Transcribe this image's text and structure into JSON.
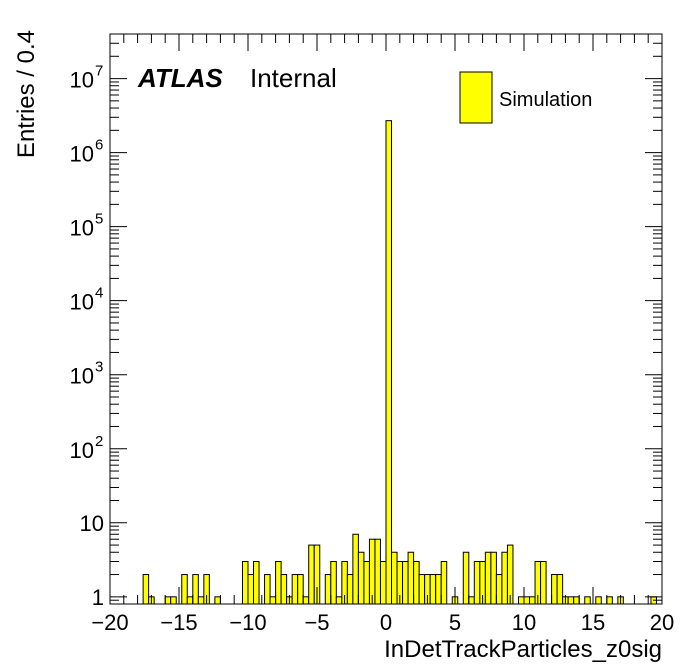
{
  "chart_data": {
    "type": "bar",
    "style": "histogram",
    "xlabel": "InDetTrackParticles_z0sig",
    "ylabel": "Entries / 0.4",
    "xlim": [
      -20,
      20
    ],
    "ylog": true,
    "ylim": [
      0.8,
      40000000
    ],
    "bin_width": 0.4,
    "x_ticks": [
      "−20",
      "−15",
      "−10",
      "−5",
      "0",
      "5",
      "10",
      "15",
      "20"
    ],
    "x_tick_values": [
      -20,
      -15,
      -10,
      -5,
      0,
      5,
      10,
      15,
      20
    ],
    "y_ticks": [
      {
        "value": 1,
        "base": "1",
        "exp": ""
      },
      {
        "value": 10,
        "base": "10",
        "exp": ""
      },
      {
        "value": 100,
        "base": "10",
        "exp": "2"
      },
      {
        "value": 1000,
        "base": "10",
        "exp": "3"
      },
      {
        "value": 10000,
        "base": "10",
        "exp": "4"
      },
      {
        "value": 100000,
        "base": "10",
        "exp": "5"
      },
      {
        "value": 1000000,
        "base": "10",
        "exp": "6"
      },
      {
        "value": 10000000,
        "base": "10",
        "exp": "7"
      }
    ],
    "atlas_label": "ATLAS",
    "atlas_sublabel": "Internal",
    "legend": {
      "label": "Simulation",
      "color": "#ffff00",
      "position": "top-right"
    },
    "fill_color": "#ffff00",
    "line_color": "#000000",
    "bins": [
      {
        "x": -17.6,
        "y": 2
      },
      {
        "x": -17.2,
        "y": 1
      },
      {
        "x": -16.0,
        "y": 1
      },
      {
        "x": -15.6,
        "y": 1
      },
      {
        "x": -14.8,
        "y": 2
      },
      {
        "x": -14.4,
        "y": 1
      },
      {
        "x": -14.0,
        "y": 2
      },
      {
        "x": -13.6,
        "y": 1
      },
      {
        "x": -13.2,
        "y": 2
      },
      {
        "x": -12.4,
        "y": 1
      },
      {
        "x": -10.4,
        "y": 3
      },
      {
        "x": -10.0,
        "y": 2
      },
      {
        "x": -9.6,
        "y": 3
      },
      {
        "x": -8.8,
        "y": 2
      },
      {
        "x": -8.4,
        "y": 1
      },
      {
        "x": -8.0,
        "y": 3
      },
      {
        "x": -7.6,
        "y": 2
      },
      {
        "x": -7.2,
        "y": 1
      },
      {
        "x": -6.8,
        "y": 2
      },
      {
        "x": -6.4,
        "y": 2
      },
      {
        "x": -6.0,
        "y": 1
      },
      {
        "x": -5.6,
        "y": 5
      },
      {
        "x": -5.2,
        "y": 5
      },
      {
        "x": -4.4,
        "y": 2
      },
      {
        "x": -4.0,
        "y": 3
      },
      {
        "x": -3.6,
        "y": 1
      },
      {
        "x": -3.2,
        "y": 3
      },
      {
        "x": -2.8,
        "y": 2
      },
      {
        "x": -2.4,
        "y": 7
      },
      {
        "x": -2.0,
        "y": 4
      },
      {
        "x": -1.6,
        "y": 3
      },
      {
        "x": -1.2,
        "y": 6
      },
      {
        "x": -0.8,
        "y": 6
      },
      {
        "x": -0.4,
        "y": 3
      },
      {
        "x": 0.0,
        "y": 2700000
      },
      {
        "x": 0.4,
        "y": 4
      },
      {
        "x": 0.8,
        "y": 3
      },
      {
        "x": 1.2,
        "y": 3
      },
      {
        "x": 1.6,
        "y": 4
      },
      {
        "x": 2.0,
        "y": 3
      },
      {
        "x": 2.4,
        "y": 2
      },
      {
        "x": 2.8,
        "y": 2
      },
      {
        "x": 3.2,
        "y": 2
      },
      {
        "x": 3.6,
        "y": 2
      },
      {
        "x": 4.0,
        "y": 3
      },
      {
        "x": 4.8,
        "y": 1
      },
      {
        "x": 5.6,
        "y": 4
      },
      {
        "x": 6.0,
        "y": 1
      },
      {
        "x": 6.4,
        "y": 3
      },
      {
        "x": 6.8,
        "y": 3
      },
      {
        "x": 7.2,
        "y": 4
      },
      {
        "x": 7.6,
        "y": 4
      },
      {
        "x": 8.0,
        "y": 2
      },
      {
        "x": 8.4,
        "y": 4
      },
      {
        "x": 8.8,
        "y": 5
      },
      {
        "x": 9.6,
        "y": 1
      },
      {
        "x": 10.0,
        "y": 1
      },
      {
        "x": 10.4,
        "y": 1
      },
      {
        "x": 10.8,
        "y": 3
      },
      {
        "x": 11.2,
        "y": 3
      },
      {
        "x": 12.0,
        "y": 2
      },
      {
        "x": 12.4,
        "y": 2
      },
      {
        "x": 12.8,
        "y": 1
      },
      {
        "x": 13.2,
        "y": 1
      },
      {
        "x": 13.6,
        "y": 1
      },
      {
        "x": 14.4,
        "y": 1
      },
      {
        "x": 15.2,
        "y": 1
      },
      {
        "x": 16.0,
        "y": 1
      },
      {
        "x": 16.8,
        "y": 1
      },
      {
        "x": 19.2,
        "y": 1
      }
    ]
  }
}
